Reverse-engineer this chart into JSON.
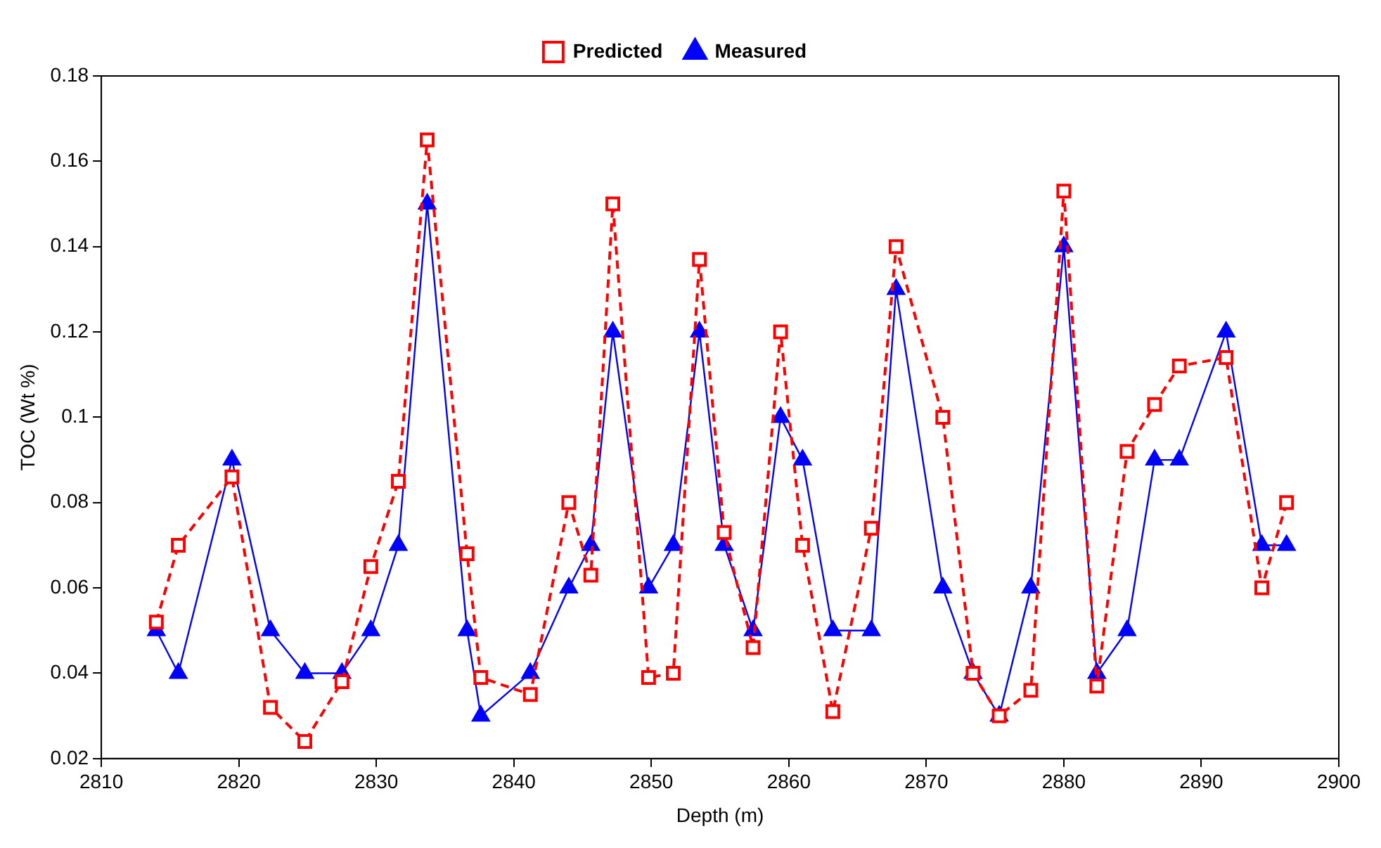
{
  "chart_data": {
    "type": "line",
    "xlabel": "Depth (m)",
    "ylabel": "TOC (Wt %)",
    "x": [
      2814,
      2815.6,
      2819.5,
      2822.3,
      2824.8,
      2827.5,
      2829.6,
      2831.6,
      2833.7,
      2836.6,
      2837.6,
      2841.2,
      2844,
      2845.6,
      2847.2,
      2849.8,
      2851.6,
      2853.5,
      2855.3,
      2857.4,
      2859.4,
      2861,
      2863.2,
      2866,
      2867.8,
      2871.2,
      2873.4,
      2875.3,
      2877.6,
      2880,
      2882.4,
      2884.6,
      2886.6,
      2888.4,
      2891.8,
      2894.4,
      2896.2
    ],
    "series": [
      {
        "name": "Measured",
        "color": "#0000ff",
        "marker": "triangle",
        "line_style": "solid",
        "values": [
          0.05,
          0.04,
          0.09,
          0.05,
          0.04,
          0.04,
          0.05,
          0.07,
          0.15,
          0.05,
          0.03,
          0.04,
          0.06,
          0.07,
          0.12,
          0.06,
          0.07,
          0.12,
          0.07,
          0.05,
          0.1,
          0.09,
          0.05,
          0.05,
          0.13,
          0.06,
          0.04,
          0.03,
          0.06,
          0.14,
          0.04,
          0.05,
          0.09,
          0.09,
          0.12,
          0.07,
          0.07
        ]
      },
      {
        "name": "Predicted",
        "color": "#ff0000",
        "marker": "square",
        "line_style": "dashed",
        "values": [
          0.052,
          0.07,
          0.086,
          0.032,
          0.024,
          0.038,
          0.065,
          0.085,
          0.165,
          0.068,
          0.039,
          0.035,
          0.08,
          0.063,
          0.15,
          0.039,
          0.04,
          0.137,
          0.073,
          0.046,
          0.12,
          0.07,
          0.031,
          0.074,
          0.14,
          0.1,
          0.04,
          0.03,
          0.036,
          0.153,
          0.037,
          0.092,
          0.103,
          0.112,
          0.114,
          0.06,
          0.08
        ]
      }
    ],
    "xlim": [
      2810,
      2900
    ],
    "xticks": [
      2810,
      2820,
      2830,
      2840,
      2850,
      2860,
      2870,
      2880,
      2890,
      2900
    ],
    "ylim": [
      0.02,
      0.18
    ],
    "yticks": [
      0.02,
      0.04,
      0.06,
      0.08,
      0.1,
      0.12,
      0.14,
      0.16,
      0.18
    ],
    "grid": false,
    "legend": "top"
  }
}
